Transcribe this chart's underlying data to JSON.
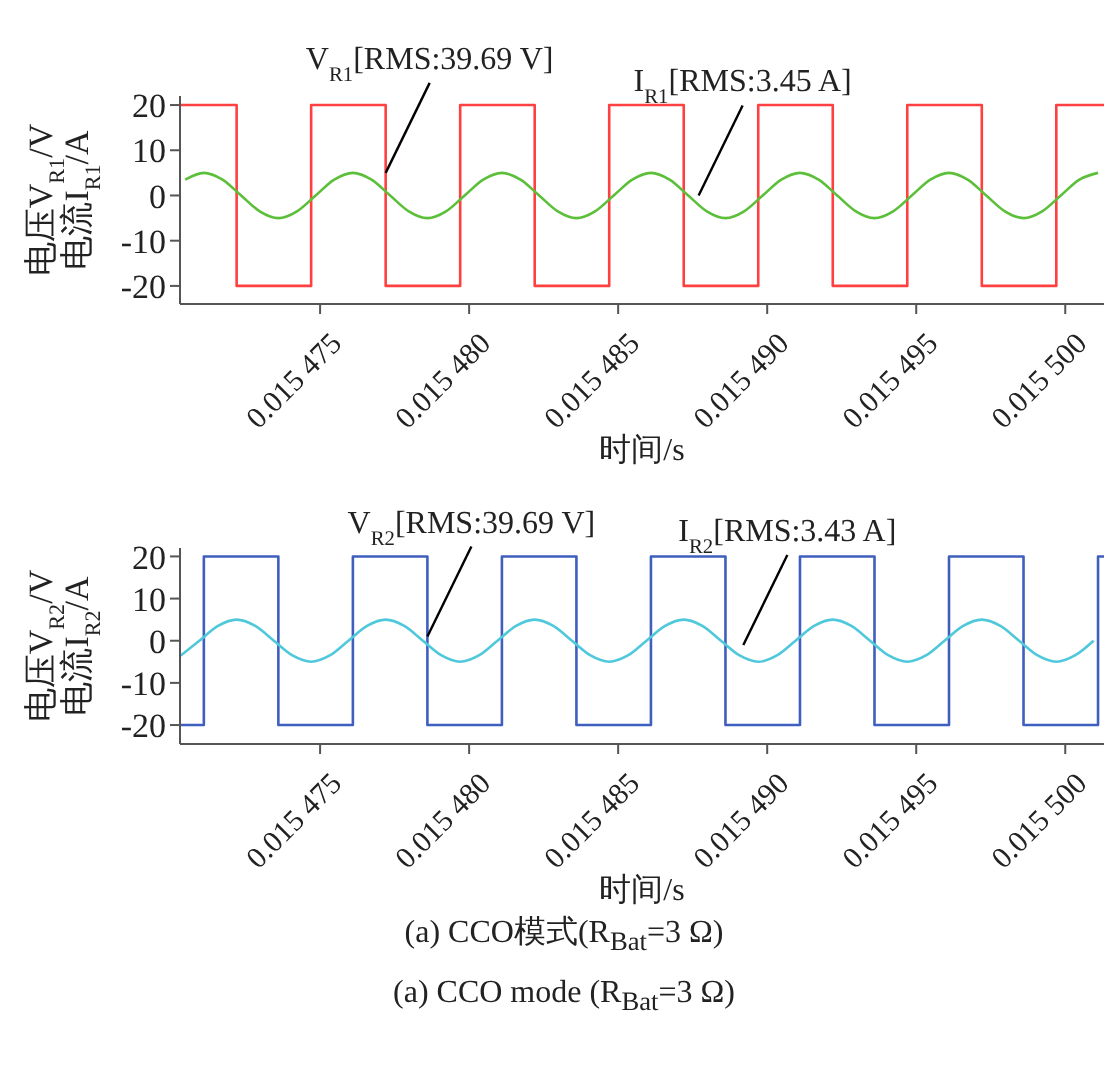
{
  "chart_data": [
    {
      "type": "line",
      "xlabel": "时间/s",
      "ylabel": "电压V$_{R1}$/V\n电流I$_{R1}$/A",
      "xlim": [
        0.0154703,
        0.0155013
      ],
      "ylim": [
        -24,
        22
      ],
      "yticks": [
        -20,
        -10,
        0,
        10,
        20
      ],
      "xticks": [
        {
          "value": 0.015475,
          "label": "0.015 475"
        },
        {
          "value": 0.01548,
          "label": "0.015 480"
        },
        {
          "value": 0.015485,
          "label": "0.015 485"
        },
        {
          "value": 0.01549,
          "label": "0.015 490"
        },
        {
          "value": 0.015495,
          "label": "0.015 495"
        },
        {
          "value": 0.0155,
          "label": "0.015 500"
        }
      ],
      "series": [
        {
          "type": "step",
          "color": "#ff4040",
          "x": [
            0.0154703,
            0.0154722,
            0.0154747,
            0.0154772,
            0.0154797,
            0.0154822,
            0.0154847,
            0.0154872,
            0.0154897,
            0.0154922,
            0.0154947,
            0.0154972,
            0.0154997,
            0.0155013
          ],
          "values": [
            20,
            -20,
            20,
            -20,
            20,
            -20,
            20,
            -20,
            20,
            -20,
            20,
            -20,
            20,
            20
          ]
        },
        {
          "type": "line",
          "color": "#5cbf3a",
          "x": [
            0.015470475,
            0.0154711,
            0.015471725,
            0.01547235,
            0.015472975,
            0.0154736,
            0.015474225,
            0.01547485,
            0.015475475,
            0.0154761,
            0.015476725,
            0.01547735,
            0.015477975,
            0.0154786,
            0.015479225,
            0.01547985,
            0.015480475,
            0.0154811,
            0.015481725,
            0.01548235,
            0.015482975,
            0.0154836,
            0.015484225,
            0.01548485,
            0.015485475,
            0.0154861,
            0.015486725,
            0.01548735,
            0.015487975,
            0.0154886,
            0.015489225,
            0.01548985,
            0.015490475,
            0.0154911,
            0.015491725,
            0.01549235,
            0.015492975,
            0.0154936,
            0.015494225,
            0.01549485,
            0.015495475,
            0.0154961,
            0.015496725,
            0.01549735,
            0.015497975,
            0.0154986,
            0.015499225,
            0.01549985,
            0.015500475,
            0.0155011
          ],
          "values": [
            3.5,
            5,
            3.5,
            0,
            -3.5,
            -5,
            -3.5,
            0,
            3.5,
            5,
            3.5,
            0,
            -3.5,
            -5,
            -3.5,
            0,
            3.5,
            5,
            3.5,
            0,
            -3.5,
            -5,
            -3.5,
            0,
            3.5,
            5,
            3.5,
            0,
            -3.5,
            -5,
            -3.5,
            0,
            3.5,
            5,
            3.5,
            0,
            -3.5,
            -5,
            -3.5,
            0,
            3.5,
            5,
            3.5,
            0,
            -3.5,
            -5,
            -3.5,
            0,
            3.5,
            5
          ]
        }
      ],
      "annotations": [
        {
          "text": "V$_{R1}$[RMS:39.69 V]",
          "x": 0.0154772,
          "y": 5
        },
        {
          "text": "I$_{R1}$[RMS:3.45 A]",
          "x": 0.0154877,
          "y": 0
        }
      ]
    },
    {
      "type": "line",
      "xlabel": "时间/s",
      "ylabel": "电压V$_{R2}$/V\n电流I$_{R2}$/A",
      "xlim": [
        0.0154703,
        0.0155013
      ],
      "ylim": [
        -24.5,
        22
      ],
      "yticks": [
        -20,
        -10,
        0,
        10,
        20
      ],
      "xticks": [
        {
          "value": 0.015475,
          "label": "0.015 475"
        },
        {
          "value": 0.01548,
          "label": "0.015 480"
        },
        {
          "value": 0.015485,
          "label": "0.015 485"
        },
        {
          "value": 0.01549,
          "label": "0.015 490"
        },
        {
          "value": 0.015495,
          "label": "0.015 495"
        },
        {
          "value": 0.0155,
          "label": "0.015 500"
        }
      ],
      "series": [
        {
          "type": "step",
          "color": "#3f5fbf",
          "x": [
            0.0154703,
            0.0154711,
            0.0154736,
            0.0154761,
            0.0154786,
            0.0154811,
            0.0154836,
            0.0154861,
            0.0154886,
            0.0154911,
            0.0154936,
            0.0154961,
            0.0154986,
            0.0155011,
            0.0155013
          ],
          "values": [
            -20,
            20,
            -20,
            20,
            -20,
            20,
            -20,
            20,
            -20,
            20,
            -20,
            20,
            -20,
            20,
            20
          ]
        },
        {
          "type": "line",
          "color": "#4fc8dc",
          "x": [
            0.015470325,
            0.01547095,
            0.015471575,
            0.0154722,
            0.015472825,
            0.01547345,
            0.015474075,
            0.0154747,
            0.015475325,
            0.01547595,
            0.015476575,
            0.0154772,
            0.015477825,
            0.01547845,
            0.015479075,
            0.0154797,
            0.015480325,
            0.01548095,
            0.015481575,
            0.0154822,
            0.015482825,
            0.01548345,
            0.015484075,
            0.0154847,
            0.015485325,
            0.01548595,
            0.015486575,
            0.0154872,
            0.015487825,
            0.01548845,
            0.015489075,
            0.0154897,
            0.015490325,
            0.01549095,
            0.015491575,
            0.0154922,
            0.015492825,
            0.01549345,
            0.015494075,
            0.0154947,
            0.015495325,
            0.01549595,
            0.015496575,
            0.0154972,
            0.015497825,
            0.01549845,
            0.015499075,
            0.0154997,
            0.015500325,
            0.01550095
          ],
          "values": [
            -3.5,
            0,
            3.5,
            5,
            3.5,
            0,
            -3.5,
            -5,
            -3.5,
            0,
            3.5,
            5,
            3.5,
            0,
            -3.5,
            -5,
            -3.5,
            0,
            3.5,
            5,
            3.5,
            0,
            -3.5,
            -5,
            -3.5,
            0,
            3.5,
            5,
            3.5,
            0,
            -3.5,
            -5,
            -3.5,
            0,
            3.5,
            5,
            3.5,
            0,
            -3.5,
            -5,
            -3.5,
            0,
            3.5,
            5,
            3.5,
            0,
            -3.5,
            -5,
            -3.5,
            0
          ]
        }
      ],
      "annotations": [
        {
          "text": "V$_{R2}$[RMS:39.69 V]",
          "x": 0.0154786,
          "y": 1
        },
        {
          "text": "I$_{R2}$[RMS:3.43 A]",
          "x": 0.0154892,
          "y": -1
        },
        "(a) CCO模式(R$_{Bat}$=3 Ω)",
        "(a) CCO mode (R$_{Bat}$=3 Ω)"
      ]
    }
  ]
}
